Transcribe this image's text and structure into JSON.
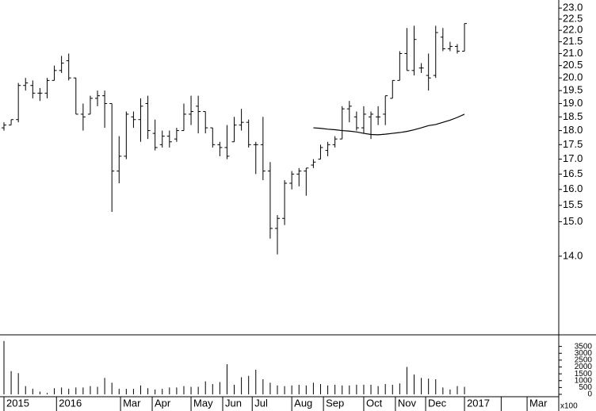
{
  "chart_data": [
    {
      "type": "ohlc",
      "log": true,
      "color": "#000000",
      "categories": [
        null,
        null,
        null,
        null,
        null,
        null,
        null,
        null,
        null,
        null,
        null,
        null,
        null,
        null,
        null,
        null,
        null,
        null,
        null,
        null,
        null,
        null,
        null,
        null,
        null,
        null,
        null,
        null,
        null,
        null,
        null,
        null,
        null,
        null,
        null,
        null,
        null,
        null,
        null,
        null,
        null,
        null,
        null,
        null,
        null,
        null,
        null,
        null,
        null,
        null,
        null,
        null,
        null,
        null,
        null,
        null,
        null,
        null,
        null,
        null,
        null,
        null,
        null,
        null,
        null
      ],
      "open": [
        18.1,
        18.2,
        18.4,
        19.7,
        19.7,
        19.4,
        19.4,
        19.9,
        20.3,
        20.7,
        20.0,
        18.6,
        18.6,
        19.2,
        19.3,
        19.0,
        16.6,
        17.1,
        18.5,
        18.4,
        19.0,
        17.9,
        17.5,
        17.8,
        17.7,
        18.0,
        18.6,
        18.9,
        18.7,
        18.1,
        17.5,
        17.4,
        17.6,
        18.2,
        18.3,
        17.5,
        17.5,
        16.6,
        14.8,
        15.1,
        16.2,
        16.5,
        16.6,
        16.8,
        17.0,
        17.3,
        17.5,
        17.7,
        18.8,
        18.5,
        18.1,
        18.5,
        18.5,
        18.6,
        19.2,
        19.9,
        21.0,
        20.3,
        20.4,
        20.1,
        20.1,
        21.7,
        21.2,
        21.3,
        21.1
      ],
      "high": [
        18.3,
        18.4,
        19.8,
        20.0,
        19.9,
        19.6,
        20.0,
        20.5,
        20.9,
        21.0,
        20.0,
        19.0,
        19.3,
        19.5,
        19.5,
        19.0,
        17.8,
        18.7,
        18.7,
        19.2,
        19.3,
        18.4,
        18.0,
        18.0,
        18.1,
        19.0,
        19.3,
        19.3,
        18.7,
        18.1,
        17.6,
        18.2,
        18.5,
        18.8,
        18.4,
        17.6,
        18.5,
        16.9,
        15.2,
        16.3,
        16.6,
        16.7,
        16.7,
        17.0,
        17.5,
        17.6,
        17.8,
        18.9,
        19.1,
        18.7,
        18.9,
        18.7,
        18.9,
        19.3,
        19.9,
        21.1,
        22.1,
        22.2,
        20.6,
        21.0,
        22.2,
        22.1,
        21.5,
        21.4,
        22.3
      ],
      "low": [
        18.0,
        18.2,
        18.3,
        19.5,
        19.2,
        19.1,
        19.2,
        19.9,
        20.2,
        19.9,
        18.6,
        18.0,
        18.6,
        18.9,
        18.1,
        15.3,
        16.2,
        17.0,
        18.1,
        17.6,
        17.7,
        17.3,
        17.4,
        17.4,
        17.6,
        18.0,
        18.2,
        17.9,
        17.9,
        17.4,
        17.1,
        17.0,
        17.6,
        18.0,
        17.4,
        16.5,
        16.3,
        14.5,
        14.05,
        14.9,
        16.0,
        16.1,
        15.8,
        16.7,
        17.0,
        17.1,
        17.4,
        17.7,
        18.3,
        18.0,
        17.9,
        17.7,
        18.2,
        18.2,
        19.2,
        19.9,
        20.3,
        20.1,
        20.2,
        19.5,
        20.0,
        21.1,
        21.1,
        21.0,
        21.1
      ],
      "close": [
        18.2,
        18.4,
        19.7,
        19.8,
        19.4,
        19.4,
        19.9,
        20.3,
        20.6,
        20.0,
        18.6,
        18.5,
        19.2,
        19.3,
        19.0,
        16.6,
        17.1,
        18.6,
        18.4,
        18.9,
        18.0,
        17.4,
        17.8,
        17.6,
        18.0,
        18.6,
        18.7,
        18.7,
        18.1,
        17.5,
        17.4,
        17.1,
        18.2,
        18.3,
        17.5,
        17.5,
        16.6,
        14.8,
        15.1,
        16.2,
        16.5,
        16.6,
        16.7,
        16.9,
        17.4,
        17.5,
        17.7,
        18.8,
        18.9,
        18.1,
        18.6,
        18.6,
        18.5,
        19.3,
        19.9,
        21.0,
        20.3,
        21.6,
        20.4,
        20.0,
        21.9,
        21.2,
        21.3,
        21.1,
        22.3
      ],
      "ma": [
        null,
        null,
        null,
        null,
        null,
        null,
        null,
        null,
        null,
        null,
        null,
        null,
        null,
        null,
        null,
        null,
        null,
        null,
        null,
        null,
        null,
        null,
        null,
        null,
        null,
        null,
        null,
        null,
        null,
        null,
        null,
        null,
        null,
        null,
        null,
        null,
        null,
        null,
        null,
        null,
        null,
        null,
        null,
        18.1,
        18.08,
        18.05,
        18.03,
        18.0,
        17.98,
        17.95,
        17.9,
        17.86,
        17.85,
        17.87,
        17.9,
        17.93,
        17.97,
        18.03,
        18.1,
        18.18,
        18.22,
        18.3,
        18.38,
        18.48,
        18.6
      ],
      "ylim": [
        12,
        23.3
      ],
      "yticks": [
        {
          "value": 23,
          "label": "23.0"
        },
        22.5,
        {
          "value": 22,
          "label": "22.0"
        },
        21.5,
        {
          "value": 21,
          "label": "21.0"
        },
        20.5,
        {
          "value": 20,
          "label": "20.0"
        },
        19.5,
        {
          "value": 19,
          "label": "19.0"
        },
        18.5,
        {
          "value": 18,
          "label": "18.0"
        },
        17.5,
        {
          "value": 17,
          "label": "17.0"
        },
        16.5,
        {
          "value": 16,
          "label": "16.0"
        },
        15.5,
        {
          "value": 15,
          "label": "15.0"
        },
        {
          "value": 14,
          "label": "14.0"
        }
      ],
      "xlim": [
        -0.5,
        76.6
      ],
      "xticks": [
        {
          "value": 0,
          "label": "2015"
        },
        {
          "value": 7.3,
          "label": "2016"
        },
        {
          "value": 16.2,
          "label": "Mar"
        },
        {
          "value": 20.6,
          "label": "Apr"
        },
        {
          "value": 26.0,
          "label": "May"
        },
        {
          "value": 30.4,
          "label": "Jun"
        },
        {
          "value": 34.5,
          "label": "Jul"
        },
        {
          "value": 40.0,
          "label": "Aug"
        },
        {
          "value": 44.4,
          "label": "Sep"
        },
        {
          "value": 50.0,
          "label": "Oct"
        },
        {
          "value": 54.4,
          "label": "Nov"
        },
        {
          "value": 58.6,
          "label": "Dec"
        },
        {
          "value": 64.0,
          "label": "2017"
        },
        {
          "value": 69.1,
          "label": ""
        },
        {
          "value": 72.7,
          "label": "Mar"
        }
      ]
    },
    {
      "type": "bar",
      "color": "#000000",
      "unit_label": "x100",
      "values": [
        3900,
        1700,
        1550,
        600,
        400,
        200,
        100,
        450,
        500,
        400,
        500,
        500,
        600,
        550,
        1200,
        850,
        400,
        400,
        400,
        650,
        450,
        350,
        400,
        500,
        500,
        600,
        550,
        550,
        950,
        750,
        900,
        2200,
        700,
        1250,
        1350,
        1800,
        1100,
        850,
        650,
        600,
        650,
        700,
        650,
        850,
        750,
        650,
        700,
        650,
        650,
        700,
        700,
        700,
        600,
        750,
        700,
        800,
        2000,
        1450,
        1200,
        1150,
        1100,
        500,
        350,
        600,
        550
      ],
      "ylim": [
        0,
        4000
      ],
      "yticks": [
        0,
        500,
        1000,
        1500,
        2000,
        2500,
        3000,
        3500
      ]
    }
  ]
}
